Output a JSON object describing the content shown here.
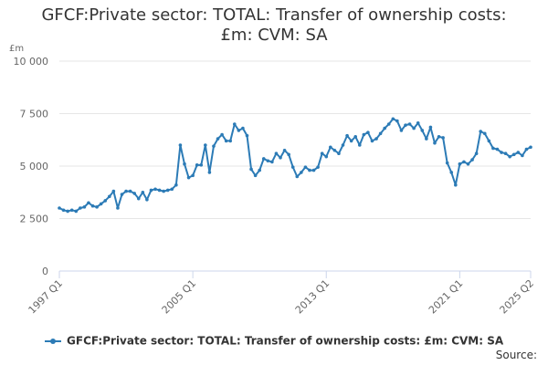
{
  "chart": {
    "title_line1": "GFCF:Private sector: TOTAL: Transfer of ownership costs:",
    "title_line2": "£m: CVM: SA",
    "y_unit": "£m",
    "source_label": "Source:",
    "legend_label": "GFCF:Private sector: TOTAL: Transfer of ownership costs: £m: CVM: SA",
    "colors": {
      "line": "#2c7bb6",
      "grid": "#e6e6e6",
      "axis": "#ccd6eb",
      "tick_text": "#666666"
    }
  },
  "chart_data": {
    "type": "line",
    "title": "GFCF:Private sector: TOTAL: Transfer of ownership costs: £m: CVM: SA",
    "xlabel": "",
    "ylabel": "£m",
    "ylim": [
      0,
      10000
    ],
    "y_ticks": [
      {
        "value": 0,
        "label": "0"
      },
      {
        "value": 2500,
        "label": "2 500"
      },
      {
        "value": 5000,
        "label": "5 000"
      },
      {
        "value": 7500,
        "label": "7 500"
      },
      {
        "value": 10000,
        "label": "10 000"
      }
    ],
    "x_tick_labels": [
      "1997 Q1",
      "2005 Q1",
      "2013 Q1",
      "2021 Q1",
      "2025 Q2"
    ],
    "grid": true,
    "legend_position": "bottom",
    "series": [
      {
        "name": "GFCF:Private sector: TOTAL: Transfer of ownership costs: £m: CVM: SA",
        "x": [
          "1997 Q1",
          "1997 Q2",
          "1997 Q3",
          "1997 Q4",
          "1998 Q1",
          "1998 Q2",
          "1998 Q3",
          "1998 Q4",
          "1999 Q1",
          "1999 Q2",
          "1999 Q3",
          "1999 Q4",
          "2000 Q1",
          "2000 Q2",
          "2000 Q3",
          "2000 Q4",
          "2001 Q1",
          "2001 Q2",
          "2001 Q3",
          "2001 Q4",
          "2002 Q1",
          "2002 Q2",
          "2002 Q3",
          "2002 Q4",
          "2003 Q1",
          "2003 Q2",
          "2003 Q3",
          "2003 Q4",
          "2004 Q1",
          "2004 Q2",
          "2004 Q3",
          "2004 Q4",
          "2005 Q1",
          "2005 Q2",
          "2005 Q3",
          "2005 Q4",
          "2006 Q1",
          "2006 Q2",
          "2006 Q3",
          "2006 Q4",
          "2007 Q1",
          "2007 Q2",
          "2007 Q3",
          "2007 Q4",
          "2008 Q1",
          "2008 Q2",
          "2008 Q3",
          "2008 Q4",
          "2009 Q1",
          "2009 Q2",
          "2009 Q3",
          "2009 Q4",
          "2010 Q1",
          "2010 Q2",
          "2010 Q3",
          "2010 Q4",
          "2011 Q1",
          "2011 Q2",
          "2011 Q3",
          "2011 Q4",
          "2012 Q1",
          "2012 Q2",
          "2012 Q3",
          "2012 Q4",
          "2013 Q1",
          "2013 Q2",
          "2013 Q3",
          "2013 Q4",
          "2014 Q1",
          "2014 Q2",
          "2014 Q3",
          "2014 Q4",
          "2015 Q1",
          "2015 Q2",
          "2015 Q3",
          "2015 Q4",
          "2016 Q1",
          "2016 Q2",
          "2016 Q3",
          "2016 Q4",
          "2017 Q1",
          "2017 Q2",
          "2017 Q3",
          "2017 Q4",
          "2018 Q1",
          "2018 Q2",
          "2018 Q3",
          "2018 Q4",
          "2019 Q1",
          "2019 Q2",
          "2019 Q3",
          "2019 Q4",
          "2020 Q1",
          "2020 Q2",
          "2020 Q3",
          "2020 Q4",
          "2021 Q1",
          "2021 Q2",
          "2021 Q3",
          "2021 Q4",
          "2022 Q1",
          "2022 Q2",
          "2022 Q3",
          "2022 Q4",
          "2023 Q1",
          "2023 Q2",
          "2023 Q3",
          "2023 Q4",
          "2024 Q1",
          "2024 Q2",
          "2024 Q3",
          "2024 Q4",
          "2025 Q1",
          "2025 Q2"
        ],
        "values": [
          3000,
          2900,
          2850,
          2900,
          2850,
          3000,
          3050,
          3250,
          3100,
          3050,
          3200,
          3350,
          3550,
          3800,
          3000,
          3650,
          3800,
          3800,
          3700,
          3450,
          3750,
          3400,
          3850,
          3900,
          3850,
          3800,
          3850,
          3900,
          4100,
          6000,
          5100,
          4450,
          4550,
          5050,
          5050,
          6000,
          4700,
          5950,
          6300,
          6500,
          6200,
          6200,
          7000,
          6700,
          6800,
          6450,
          4850,
          4550,
          4800,
          5350,
          5250,
          5200,
          5600,
          5400,
          5750,
          5550,
          4950,
          4500,
          4700,
          4950,
          4800,
          4800,
          4950,
          5600,
          5450,
          5900,
          5750,
          5600,
          6000,
          6450,
          6200,
          6400,
          6000,
          6500,
          6600,
          6200,
          6300,
          6550,
          6800,
          7000,
          7250,
          7150,
          6700,
          6950,
          7000,
          6800,
          7050,
          6700,
          6300,
          6850,
          6100,
          6400,
          6350,
          5150,
          4700,
          4100,
          5100,
          5200,
          5100,
          5300,
          5600,
          6650,
          6550,
          6200,
          5850,
          5800,
          5650,
          5600,
          5450,
          5550,
          5650,
          5500,
          5800,
          5900
        ]
      }
    ]
  }
}
